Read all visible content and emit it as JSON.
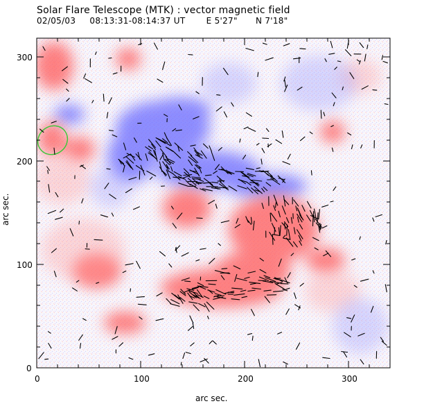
{
  "figure": {
    "title": "Solar Flare Telescope (MTK) : vector magnetic field",
    "date": "02/05/03",
    "time_range": "08:13:31-08:14:37 UT",
    "position_east": "E 5'27\"",
    "position_north": "N 7'18\""
  },
  "axes": {
    "xlabel": "arc sec.",
    "ylabel": "arc sec.",
    "x_ticks": [
      "0",
      "100",
      "200",
      "300"
    ],
    "y_ticks": [
      "0",
      "100",
      "200",
      "300"
    ],
    "x_range": [
      0,
      340
    ],
    "y_range": [
      0,
      320
    ]
  },
  "colors": {
    "positive_polarity": "#ff3a3a",
    "negative_polarity": "#3c3cff",
    "contour": "#37c837",
    "vectors": "#000000"
  },
  "legend_semantics": {
    "red": "positive-polarity",
    "blue": "negative-polarity",
    "dashes": "transverse-field-vectors",
    "green_contour": "highlighted-region"
  }
}
